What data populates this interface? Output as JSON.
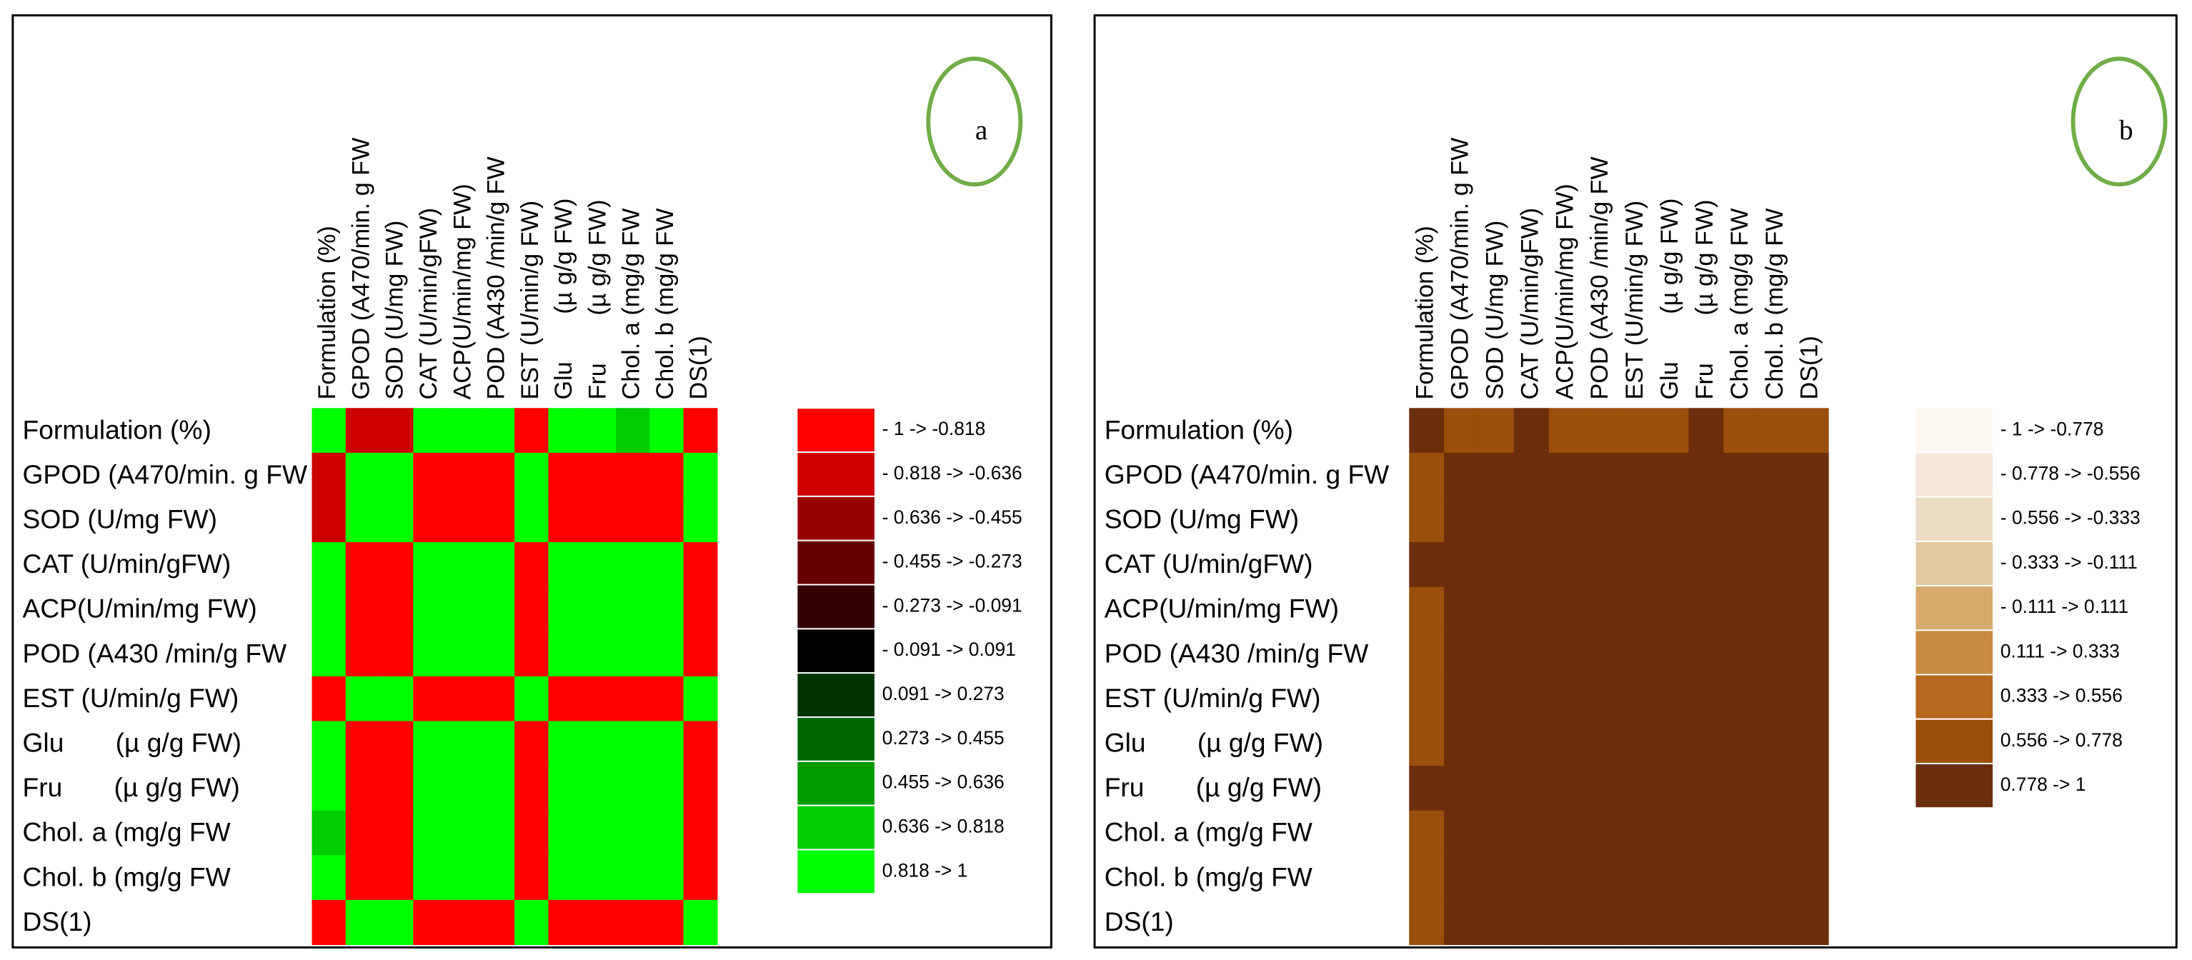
{
  "chart_data": [
    {
      "type": "heatmap",
      "annotation": "a",
      "categories": [
        "Formulation (%)",
        "GPOD (A470/min. g FW",
        "SOD (U/mg FW)",
        "CAT (U/min/gFW)",
        "ACP(U/min/mg FW)",
        "POD (A430 /min/g FW",
        "EST (U/min/g FW)",
        "Glu       (µ g/g FW)",
        "Fru       (µ g/g FW)",
        "Chol. a (mg/g FW",
        "Chol. b (mg/g FW",
        "DS(1)"
      ],
      "values": [
        [
          1,
          -0.7,
          -0.7,
          0.95,
          0.95,
          0.95,
          -0.95,
          0.95,
          0.95,
          0.75,
          0.95,
          -0.95
        ],
        [
          -0.7,
          1,
          0.95,
          -0.95,
          -0.95,
          -0.95,
          0.95,
          -0.95,
          -0.95,
          -0.95,
          -0.95,
          0.95
        ],
        [
          -0.7,
          0.95,
          1,
          -0.95,
          -0.95,
          -0.95,
          0.95,
          -0.95,
          -0.95,
          -0.95,
          -0.95,
          0.95
        ],
        [
          0.95,
          -0.95,
          -0.95,
          1,
          0.95,
          0.95,
          -0.95,
          0.95,
          0.95,
          0.95,
          0.95,
          -0.95
        ],
        [
          0.95,
          -0.95,
          -0.95,
          0.95,
          1,
          0.95,
          -0.95,
          0.95,
          0.95,
          0.95,
          0.95,
          -0.95
        ],
        [
          0.95,
          -0.95,
          -0.95,
          0.95,
          0.95,
          1,
          -0.95,
          0.95,
          0.95,
          0.95,
          0.95,
          -0.95
        ],
        [
          -0.95,
          0.95,
          0.95,
          -0.95,
          -0.95,
          -0.95,
          1,
          -0.95,
          -0.95,
          -0.95,
          -0.95,
          0.95
        ],
        [
          0.95,
          -0.95,
          -0.95,
          0.95,
          0.95,
          0.95,
          -0.95,
          1,
          0.95,
          0.95,
          0.95,
          -0.95
        ],
        [
          0.95,
          -0.95,
          -0.95,
          0.95,
          0.95,
          0.95,
          -0.95,
          0.95,
          1,
          0.95,
          0.95,
          -0.95
        ],
        [
          0.75,
          -0.95,
          -0.95,
          0.95,
          0.95,
          0.95,
          -0.95,
          0.95,
          0.95,
          1,
          0.95,
          -0.95
        ],
        [
          0.95,
          -0.95,
          -0.95,
          0.95,
          0.95,
          0.95,
          -0.95,
          0.95,
          0.95,
          0.95,
          1,
          -0.95
        ],
        [
          -0.95,
          0.95,
          0.95,
          -0.95,
          -0.95,
          -0.95,
          0.95,
          -0.95,
          -0.95,
          -0.95,
          -0.95,
          1
        ]
      ],
      "bins": [
        -1,
        -0.818,
        -0.636,
        -0.455,
        -0.273,
        -0.091,
        0.091,
        0.273,
        0.455,
        0.636,
        0.818,
        1
      ],
      "bin_labels": [
        "- 1 -> -0.818",
        "- 0.818 -> -0.636",
        "- 0.636 -> -0.455",
        "- 0.455 -> -0.273",
        "- 0.273 -> -0.091",
        "- 0.091 -> 0.091",
        "0.091 -> 0.273",
        "0.273 -> 0.455",
        "0.455 -> 0.636",
        "0.636 -> 0.818",
        "0.818 -> 1"
      ],
      "colors": [
        "#ff0000",
        "#cc0000",
        "#990000",
        "#660000",
        "#330000",
        "#000000",
        "#003300",
        "#006600",
        "#009900",
        "#00cc00",
        "#00ff00"
      ]
    },
    {
      "type": "heatmap",
      "annotation": "b",
      "categories": [
        "Formulation (%)",
        "GPOD (A470/min. g FW",
        "SOD (U/mg FW)",
        "CAT (U/min/gFW)",
        "ACP(U/min/mg FW)",
        "POD (A430 /min/g FW",
        "EST (U/min/g FW)",
        "Glu       (µ g/g FW)",
        "Fru       (µ g/g FW)",
        "Chol. a (mg/g FW",
        "Chol. b (mg/g FW",
        "DS(1)"
      ],
      "values": [
        [
          1,
          0.7,
          0.7,
          0.95,
          0.7,
          0.7,
          0.7,
          0.7,
          0.95,
          0.7,
          0.7,
          0.7
        ],
        [
          0.7,
          1,
          0.95,
          0.95,
          0.95,
          0.95,
          0.95,
          0.95,
          0.95,
          0.95,
          0.95,
          0.95
        ],
        [
          0.7,
          0.95,
          1,
          0.95,
          0.95,
          0.95,
          0.95,
          0.95,
          0.95,
          0.95,
          0.95,
          0.95
        ],
        [
          0.95,
          0.95,
          0.95,
          1,
          0.95,
          0.95,
          0.95,
          0.95,
          0.95,
          0.95,
          0.95,
          0.95
        ],
        [
          0.7,
          0.95,
          0.95,
          0.95,
          1,
          0.95,
          0.95,
          0.95,
          0.95,
          0.95,
          0.95,
          0.95
        ],
        [
          0.7,
          0.95,
          0.95,
          0.95,
          0.95,
          1,
          0.95,
          0.95,
          0.95,
          0.95,
          0.95,
          0.95
        ],
        [
          0.7,
          0.95,
          0.95,
          0.95,
          0.95,
          0.95,
          1,
          0.95,
          0.95,
          0.95,
          0.95,
          0.95
        ],
        [
          0.7,
          0.95,
          0.95,
          0.95,
          0.95,
          0.95,
          0.95,
          1,
          0.95,
          0.95,
          0.95,
          0.95
        ],
        [
          0.95,
          0.95,
          0.95,
          0.95,
          0.95,
          0.95,
          0.95,
          0.95,
          1,
          0.95,
          0.95,
          0.95
        ],
        [
          0.7,
          0.95,
          0.95,
          0.95,
          0.95,
          0.95,
          0.95,
          0.95,
          0.95,
          1,
          0.95,
          0.95
        ],
        [
          0.7,
          0.95,
          0.95,
          0.95,
          0.95,
          0.95,
          0.95,
          0.95,
          0.95,
          0.95,
          1,
          0.95
        ],
        [
          0.7,
          0.95,
          0.95,
          0.95,
          0.95,
          0.95,
          0.95,
          0.95,
          0.95,
          0.95,
          0.95,
          1
        ]
      ],
      "bins": [
        -1,
        -0.778,
        -0.556,
        -0.333,
        -0.111,
        0.111,
        0.333,
        0.556,
        0.778,
        1
      ],
      "bin_labels": [
        "- 1 -> -0.778",
        "- 0.778 -> -0.556",
        "- 0.556 -> -0.333",
        "- 0.333 -> -0.111",
        "- 0.111 -> 0.111",
        "0.111 -> 0.333",
        "0.333 -> 0.556",
        "0.556 -> 0.778",
        "0.778 -> 1"
      ],
      "colors": [
        "#fdf8f2",
        "#f5e8da",
        "#eddac4",
        "#e2c89e",
        "#d6aa6b",
        "#c88c40",
        "#b5671d",
        "#9a4f0b",
        "#6b2e0c"
      ]
    }
  ]
}
